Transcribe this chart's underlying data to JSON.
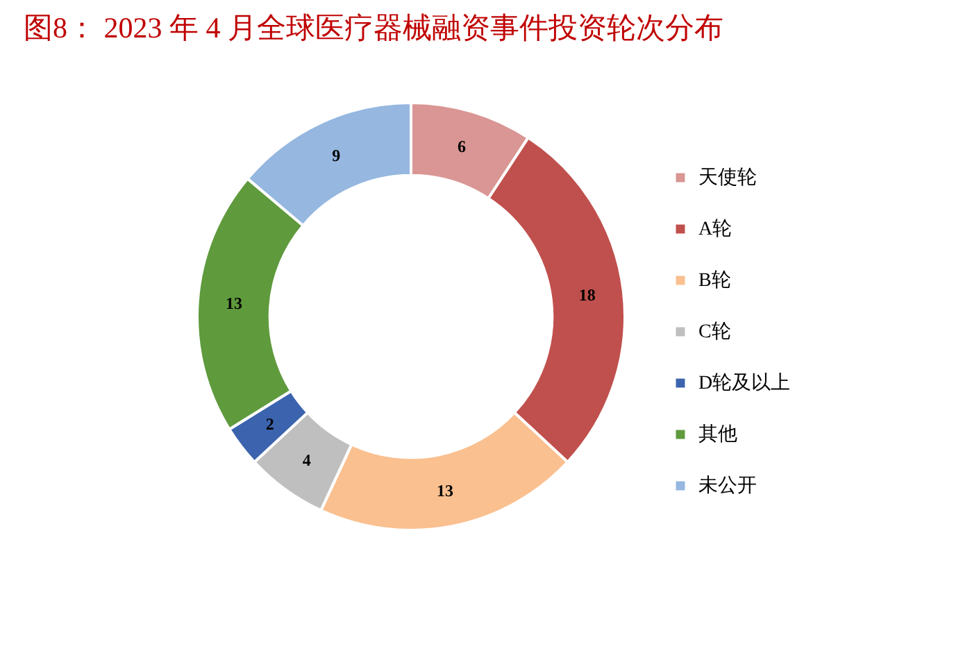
{
  "chart_data": {
    "type": "donut",
    "title": "图8： 2023 年 4 月全球医疗器械融资事件投资轮次分布",
    "categories": [
      "天使轮",
      "A轮",
      "B轮",
      "C轮",
      "D轮及以上",
      "其他",
      "未公开"
    ],
    "values": [
      6,
      18,
      13,
      4,
      2,
      13,
      9
    ],
    "colors": [
      "#d99694",
      "#c0504d",
      "#fac090",
      "#bfbfbf",
      "#3c64ae",
      "#5f9a3d",
      "#95b7e0"
    ],
    "data_labels": true,
    "legend": "right"
  }
}
